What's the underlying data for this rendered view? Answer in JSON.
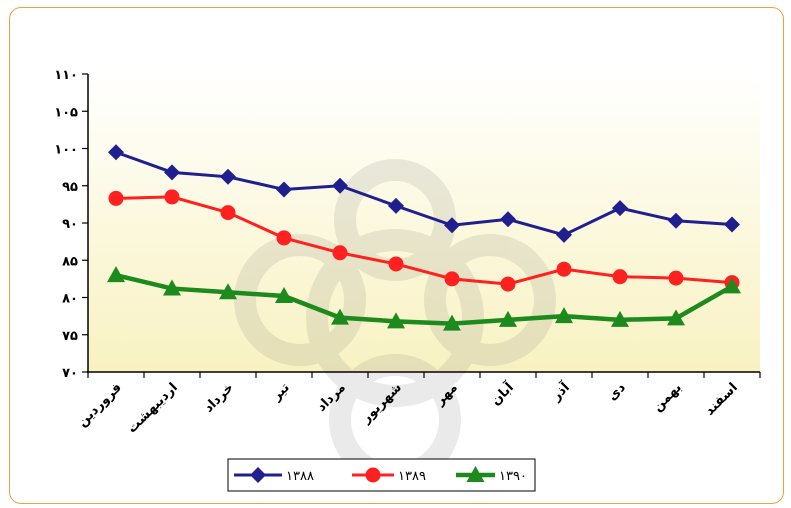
{
  "chart_data": {
    "type": "line",
    "categories": [
      "فروردین",
      "اردیبهشت",
      "خرداد",
      "تیر",
      "مرداد",
      "شهریور",
      "مهر",
      "آبان",
      "آذر",
      "دی",
      "بهمن",
      "اسفند"
    ],
    "ylim": [
      70,
      110
    ],
    "y_ticks": [
      70,
      75,
      80,
      85,
      90,
      95,
      100,
      105,
      110
    ],
    "y_tick_labels": [
      "۷۰",
      "۷۵",
      "۸۰",
      "۸۵",
      "۹۰",
      "۹۵",
      "۱۰۰",
      "۱۰۵",
      "۱۱۰"
    ],
    "grid": false,
    "legend_position": "bottom",
    "series": [
      {
        "name": "۱۳۸۸",
        "color": "#1f1f8f",
        "marker": "diamond",
        "values": [
          99.5,
          96.8,
          96.2,
          94.5,
          95.0,
          92.3,
          89.7,
          90.5,
          88.4,
          92.0,
          90.3,
          89.8
        ]
      },
      {
        "name": "۱۳۸۹",
        "color": "#ff2020",
        "marker": "circle",
        "values": [
          93.3,
          93.5,
          91.4,
          88.0,
          86.0,
          84.5,
          82.5,
          81.8,
          83.8,
          82.8,
          82.6,
          82.0
        ]
      },
      {
        "name": "۱۳۹۰",
        "color": "#1c8a1c",
        "marker": "triangle",
        "values": [
          83.0,
          81.2,
          80.7,
          80.2,
          77.3,
          76.8,
          76.5,
          77.0,
          77.5,
          77.0,
          77.2,
          81.5
        ]
      }
    ]
  }
}
